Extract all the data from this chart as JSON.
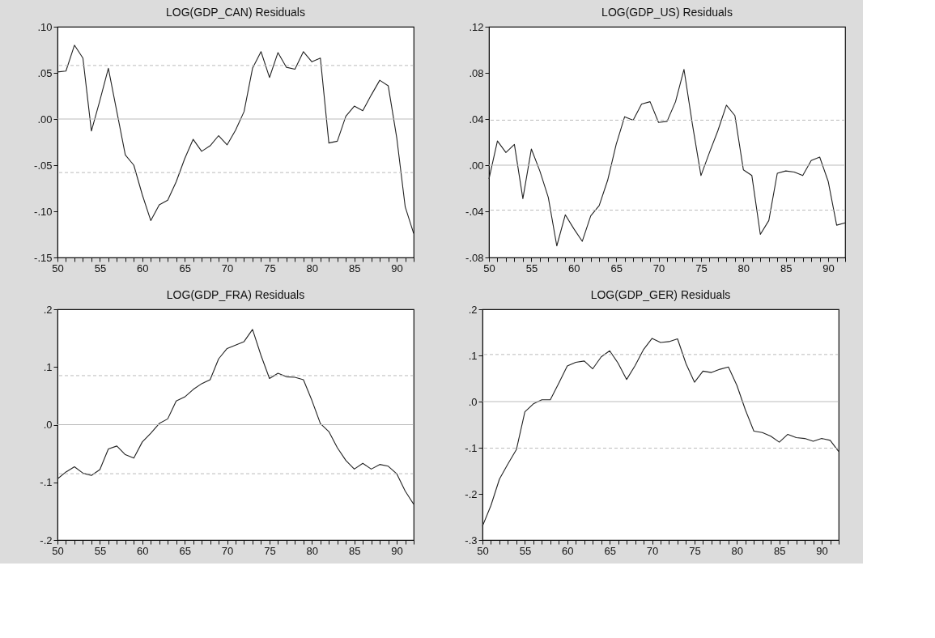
{
  "chart_data": [
    {
      "type": "line",
      "title": "LOG(GDP_CAN) Residuals",
      "x": [
        50,
        51,
        52,
        53,
        54,
        55,
        56,
        57,
        58,
        59,
        60,
        61,
        62,
        63,
        64,
        65,
        66,
        67,
        68,
        69,
        70,
        71,
        72,
        73,
        74,
        75,
        76,
        77,
        78,
        79,
        80,
        81,
        82,
        83,
        84,
        85,
        86,
        87,
        88,
        89,
        90,
        91,
        92
      ],
      "series": [
        {
          "color": "#222222",
          "values": [
            0.051,
            0.052,
            0.08,
            0.066,
            -0.013,
            0.02,
            0.055,
            0.008,
            -0.039,
            -0.05,
            -0.082,
            -0.11,
            -0.093,
            -0.088,
            -0.068,
            -0.043,
            -0.022,
            -0.035,
            -0.029,
            -0.018,
            -0.028,
            -0.012,
            0.008,
            0.055,
            0.073,
            0.045,
            0.072,
            0.056,
            0.054,
            0.073,
            0.062,
            0.066,
            -0.026,
            -0.024,
            0.003,
            0.014,
            0.009,
            0.026,
            0.042,
            0.036,
            -0.02,
            -0.095,
            -0.124
          ]
        }
      ],
      "xlim": [
        50,
        92
      ],
      "xticks": [
        50,
        {
          "value": 51,
          "label": null
        },
        {
          "value": 52,
          "label": null
        },
        {
          "value": 53,
          "label": null
        },
        {
          "value": 54,
          "label": null
        },
        55,
        {
          "value": 56,
          "label": null
        },
        {
          "value": 57,
          "label": null
        },
        {
          "value": 58,
          "label": null
        },
        {
          "value": 59,
          "label": null
        },
        60,
        {
          "value": 61,
          "label": null
        },
        {
          "value": 62,
          "label": null
        },
        {
          "value": 63,
          "label": null
        },
        {
          "value": 64,
          "label": null
        },
        65,
        {
          "value": 66,
          "label": null
        },
        {
          "value": 67,
          "label": null
        },
        {
          "value": 68,
          "label": null
        },
        {
          "value": 69,
          "label": null
        },
        70,
        {
          "value": 71,
          "label": null
        },
        {
          "value": 72,
          "label": null
        },
        {
          "value": 73,
          "label": null
        },
        {
          "value": 74,
          "label": null
        },
        75,
        {
          "value": 76,
          "label": null
        },
        {
          "value": 77,
          "label": null
        },
        {
          "value": 78,
          "label": null
        },
        {
          "value": 79,
          "label": null
        },
        80,
        {
          "value": 81,
          "label": null
        },
        {
          "value": 82,
          "label": null
        },
        {
          "value": 83,
          "label": null
        },
        {
          "value": 84,
          "label": null
        },
        85,
        {
          "value": 86,
          "label": null
        },
        {
          "value": 87,
          "label": null
        },
        {
          "value": 88,
          "label": null
        },
        {
          "value": 89,
          "label": null
        },
        90,
        {
          "value": 91,
          "label": null
        },
        {
          "value": 92,
          "label": null
        }
      ],
      "ylim": [
        -0.15,
        0.1
      ],
      "yticks": [
        {
          "value": -0.15,
          "label": "-.15"
        },
        {
          "value": -0.1,
          "label": "-.10"
        },
        {
          "value": -0.05,
          "label": "-.05"
        },
        {
          "value": 0,
          "label": ".00"
        },
        {
          "value": 0.05,
          "label": ".05"
        },
        {
          "value": 0.1,
          "label": ".10"
        }
      ],
      "ref_lines": [
        {
          "axis": "y",
          "value": 0,
          "color": "#bbbbbb",
          "line_style": "solid"
        },
        {
          "axis": "y",
          "value": 0.058,
          "color": "#bbbbbb",
          "line_style": "dashed"
        },
        {
          "axis": "y",
          "value": -0.058,
          "color": "#bbbbbb",
          "line_style": "dashed"
        }
      ],
      "grid": false,
      "marker": "none",
      "line_style": "solid"
    },
    {
      "type": "line",
      "title": "LOG(GDP_US) Residuals",
      "x": [
        50,
        51,
        52,
        53,
        54,
        55,
        56,
        57,
        58,
        59,
        60,
        61,
        62,
        63,
        64,
        65,
        66,
        67,
        68,
        69,
        70,
        71,
        72,
        73,
        74,
        75,
        76,
        77,
        78,
        79,
        80,
        81,
        82,
        83,
        84,
        85,
        86,
        87,
        88,
        89,
        90,
        91,
        92
      ],
      "series": [
        {
          "color": "#222222",
          "values": [
            -0.012,
            0.021,
            0.011,
            0.018,
            -0.029,
            0.014,
            -0.005,
            -0.028,
            -0.07,
            -0.043,
            -0.055,
            -0.066,
            -0.044,
            -0.035,
            -0.013,
            0.018,
            0.042,
            0.039,
            0.053,
            0.055,
            0.037,
            0.038,
            0.055,
            0.083,
            0.035,
            -0.009,
            0.011,
            0.03,
            0.052,
            0.043,
            -0.004,
            -0.009,
            -0.06,
            -0.048,
            -0.007,
            -0.005,
            -0.006,
            -0.009,
            0.004,
            0.007,
            -0.014,
            -0.052,
            -0.05
          ]
        }
      ],
      "xlim": [
        50,
        92
      ],
      "xticks": [
        50,
        {
          "value": 51,
          "label": null
        },
        {
          "value": 52,
          "label": null
        },
        {
          "value": 53,
          "label": null
        },
        {
          "value": 54,
          "label": null
        },
        55,
        {
          "value": 56,
          "label": null
        },
        {
          "value": 57,
          "label": null
        },
        {
          "value": 58,
          "label": null
        },
        {
          "value": 59,
          "label": null
        },
        60,
        {
          "value": 61,
          "label": null
        },
        {
          "value": 62,
          "label": null
        },
        {
          "value": 63,
          "label": null
        },
        {
          "value": 64,
          "label": null
        },
        65,
        {
          "value": 66,
          "label": null
        },
        {
          "value": 67,
          "label": null
        },
        {
          "value": 68,
          "label": null
        },
        {
          "value": 69,
          "label": null
        },
        70,
        {
          "value": 71,
          "label": null
        },
        {
          "value": 72,
          "label": null
        },
        {
          "value": 73,
          "label": null
        },
        {
          "value": 74,
          "label": null
        },
        75,
        {
          "value": 76,
          "label": null
        },
        {
          "value": 77,
          "label": null
        },
        {
          "value": 78,
          "label": null
        },
        {
          "value": 79,
          "label": null
        },
        80,
        {
          "value": 81,
          "label": null
        },
        {
          "value": 82,
          "label": null
        },
        {
          "value": 83,
          "label": null
        },
        {
          "value": 84,
          "label": null
        },
        85,
        {
          "value": 86,
          "label": null
        },
        {
          "value": 87,
          "label": null
        },
        {
          "value": 88,
          "label": null
        },
        {
          "value": 89,
          "label": null
        },
        90,
        {
          "value": 91,
          "label": null
        },
        {
          "value": 92,
          "label": null
        }
      ],
      "ylim": [
        -0.08,
        0.12
      ],
      "yticks": [
        {
          "value": -0.08,
          "label": "-.08"
        },
        {
          "value": -0.04,
          "label": "-.04"
        },
        {
          "value": 0,
          "label": ".00"
        },
        {
          "value": 0.04,
          "label": ".04"
        },
        {
          "value": 0.08,
          "label": ".08"
        },
        {
          "value": 0.12,
          "label": ".12"
        }
      ],
      "ref_lines": [
        {
          "axis": "y",
          "value": 0,
          "color": "#bbbbbb",
          "line_style": "solid"
        },
        {
          "axis": "y",
          "value": 0.039,
          "color": "#bbbbbb",
          "line_style": "dashed"
        },
        {
          "axis": "y",
          "value": -0.039,
          "color": "#bbbbbb",
          "line_style": "dashed"
        }
      ],
      "grid": false,
      "marker": "none",
      "line_style": "solid"
    },
    {
      "type": "line",
      "title": "LOG(GDP_FRA) Residuals",
      "x": [
        50,
        51,
        52,
        53,
        54,
        55,
        56,
        57,
        58,
        59,
        60,
        61,
        62,
        63,
        64,
        65,
        66,
        67,
        68,
        69,
        70,
        71,
        72,
        73,
        74,
        75,
        76,
        77,
        78,
        79,
        80,
        81,
        82,
        83,
        84,
        85,
        86,
        87,
        88,
        89,
        90,
        91,
        92
      ],
      "series": [
        {
          "color": "#222222",
          "values": [
            -0.094,
            -0.082,
            -0.073,
            -0.084,
            -0.088,
            -0.078,
            -0.042,
            -0.037,
            -0.052,
            -0.058,
            -0.03,
            -0.015,
            0.002,
            0.01,
            0.041,
            0.048,
            0.061,
            0.071,
            0.078,
            0.114,
            0.132,
            0.138,
            0.144,
            0.165,
            0.12,
            0.08,
            0.089,
            0.083,
            0.082,
            0.078,
            0.042,
            0.002,
            -0.012,
            -0.04,
            -0.062,
            -0.077,
            -0.067,
            -0.077,
            -0.069,
            -0.072,
            -0.085,
            -0.115,
            -0.138
          ]
        }
      ],
      "xlim": [
        50,
        92
      ],
      "xticks": [
        50,
        {
          "value": 51,
          "label": null
        },
        {
          "value": 52,
          "label": null
        },
        {
          "value": 53,
          "label": null
        },
        {
          "value": 54,
          "label": null
        },
        55,
        {
          "value": 56,
          "label": null
        },
        {
          "value": 57,
          "label": null
        },
        {
          "value": 58,
          "label": null
        },
        {
          "value": 59,
          "label": null
        },
        60,
        {
          "value": 61,
          "label": null
        },
        {
          "value": 62,
          "label": null
        },
        {
          "value": 63,
          "label": null
        },
        {
          "value": 64,
          "label": null
        },
        65,
        {
          "value": 66,
          "label": null
        },
        {
          "value": 67,
          "label": null
        },
        {
          "value": 68,
          "label": null
        },
        {
          "value": 69,
          "label": null
        },
        70,
        {
          "value": 71,
          "label": null
        },
        {
          "value": 72,
          "label": null
        },
        {
          "value": 73,
          "label": null
        },
        {
          "value": 74,
          "label": null
        },
        75,
        {
          "value": 76,
          "label": null
        },
        {
          "value": 77,
          "label": null
        },
        {
          "value": 78,
          "label": null
        },
        {
          "value": 79,
          "label": null
        },
        80,
        {
          "value": 81,
          "label": null
        },
        {
          "value": 82,
          "label": null
        },
        {
          "value": 83,
          "label": null
        },
        {
          "value": 84,
          "label": null
        },
        85,
        {
          "value": 86,
          "label": null
        },
        {
          "value": 87,
          "label": null
        },
        {
          "value": 88,
          "label": null
        },
        {
          "value": 89,
          "label": null
        },
        90,
        {
          "value": 91,
          "label": null
        },
        {
          "value": 92,
          "label": null
        }
      ],
      "ylim": [
        -0.2,
        0.2
      ],
      "yticks": [
        {
          "value": -0.2,
          "label": "-.2"
        },
        {
          "value": -0.1,
          "label": "-.1"
        },
        {
          "value": 0,
          "label": ".0"
        },
        {
          "value": 0.1,
          "label": ".1"
        },
        {
          "value": 0.2,
          "label": ".2"
        }
      ],
      "ref_lines": [
        {
          "axis": "y",
          "value": 0,
          "color": "#bbbbbb",
          "line_style": "solid"
        },
        {
          "axis": "y",
          "value": 0.085,
          "color": "#bbbbbb",
          "line_style": "dashed"
        },
        {
          "axis": "y",
          "value": -0.085,
          "color": "#bbbbbb",
          "line_style": "dashed"
        }
      ],
      "grid": false,
      "marker": "none",
      "line_style": "solid"
    },
    {
      "type": "line",
      "title": "LOG(GDP_GER) Residuals",
      "x": [
        50,
        51,
        52,
        53,
        54,
        55,
        56,
        57,
        58,
        59,
        60,
        61,
        62,
        63,
        64,
        65,
        66,
        67,
        68,
        69,
        70,
        71,
        72,
        73,
        74,
        75,
        76,
        77,
        78,
        79,
        80,
        81,
        82,
        83,
        84,
        85,
        86,
        87,
        88,
        89,
        90,
        91,
        92
      ],
      "series": [
        {
          "color": "#222222",
          "values": [
            -0.27,
            -0.225,
            -0.168,
            -0.135,
            -0.104,
            -0.022,
            -0.005,
            0.004,
            0.004,
            0.04,
            0.077,
            0.085,
            0.088,
            0.071,
            0.097,
            0.11,
            0.083,
            0.048,
            0.078,
            0.113,
            0.137,
            0.128,
            0.13,
            0.136,
            0.082,
            0.042,
            0.066,
            0.063,
            0.07,
            0.075,
            0.035,
            -0.018,
            -0.064,
            -0.067,
            -0.075,
            -0.088,
            -0.071,
            -0.078,
            -0.08,
            -0.086,
            -0.08,
            -0.084,
            -0.108
          ]
        }
      ],
      "xlim": [
        50,
        92
      ],
      "xticks": [
        50,
        {
          "value": 51,
          "label": null
        },
        {
          "value": 52,
          "label": null
        },
        {
          "value": 53,
          "label": null
        },
        {
          "value": 54,
          "label": null
        },
        55,
        {
          "value": 56,
          "label": null
        },
        {
          "value": 57,
          "label": null
        },
        {
          "value": 58,
          "label": null
        },
        {
          "value": 59,
          "label": null
        },
        60,
        {
          "value": 61,
          "label": null
        },
        {
          "value": 62,
          "label": null
        },
        {
          "value": 63,
          "label": null
        },
        {
          "value": 64,
          "label": null
        },
        65,
        {
          "value": 66,
          "label": null
        },
        {
          "value": 67,
          "label": null
        },
        {
          "value": 68,
          "label": null
        },
        {
          "value": 69,
          "label": null
        },
        70,
        {
          "value": 71,
          "label": null
        },
        {
          "value": 72,
          "label": null
        },
        {
          "value": 73,
          "label": null
        },
        {
          "value": 74,
          "label": null
        },
        75,
        {
          "value": 76,
          "label": null
        },
        {
          "value": 77,
          "label": null
        },
        {
          "value": 78,
          "label": null
        },
        {
          "value": 79,
          "label": null
        },
        80,
        {
          "value": 81,
          "label": null
        },
        {
          "value": 82,
          "label": null
        },
        {
          "value": 83,
          "label": null
        },
        {
          "value": 84,
          "label": null
        },
        85,
        {
          "value": 86,
          "label": null
        },
        {
          "value": 87,
          "label": null
        },
        {
          "value": 88,
          "label": null
        },
        {
          "value": 89,
          "label": null
        },
        90,
        {
          "value": 91,
          "label": null
        },
        {
          "value": 92,
          "label": null
        }
      ],
      "ylim": [
        -0.3,
        0.2
      ],
      "yticks": [
        {
          "value": -0.3,
          "label": "-.3"
        },
        {
          "value": -0.2,
          "label": "-.2"
        },
        {
          "value": -0.1,
          "label": "-.1"
        },
        {
          "value": 0,
          "label": ".0"
        },
        {
          "value": 0.1,
          "label": ".1"
        },
        {
          "value": 0.2,
          "label": ".2"
        }
      ],
      "ref_lines": [
        {
          "axis": "y",
          "value": 0,
          "color": "#bbbbbb",
          "line_style": "solid"
        },
        {
          "axis": "y",
          "value": 0.102,
          "color": "#bbbbbb",
          "line_style": "dashed"
        },
        {
          "axis": "y",
          "value": -0.101,
          "color": "#bbbbbb",
          "line_style": "dashed"
        }
      ],
      "grid": false,
      "marker": "none",
      "line_style": "solid"
    }
  ]
}
